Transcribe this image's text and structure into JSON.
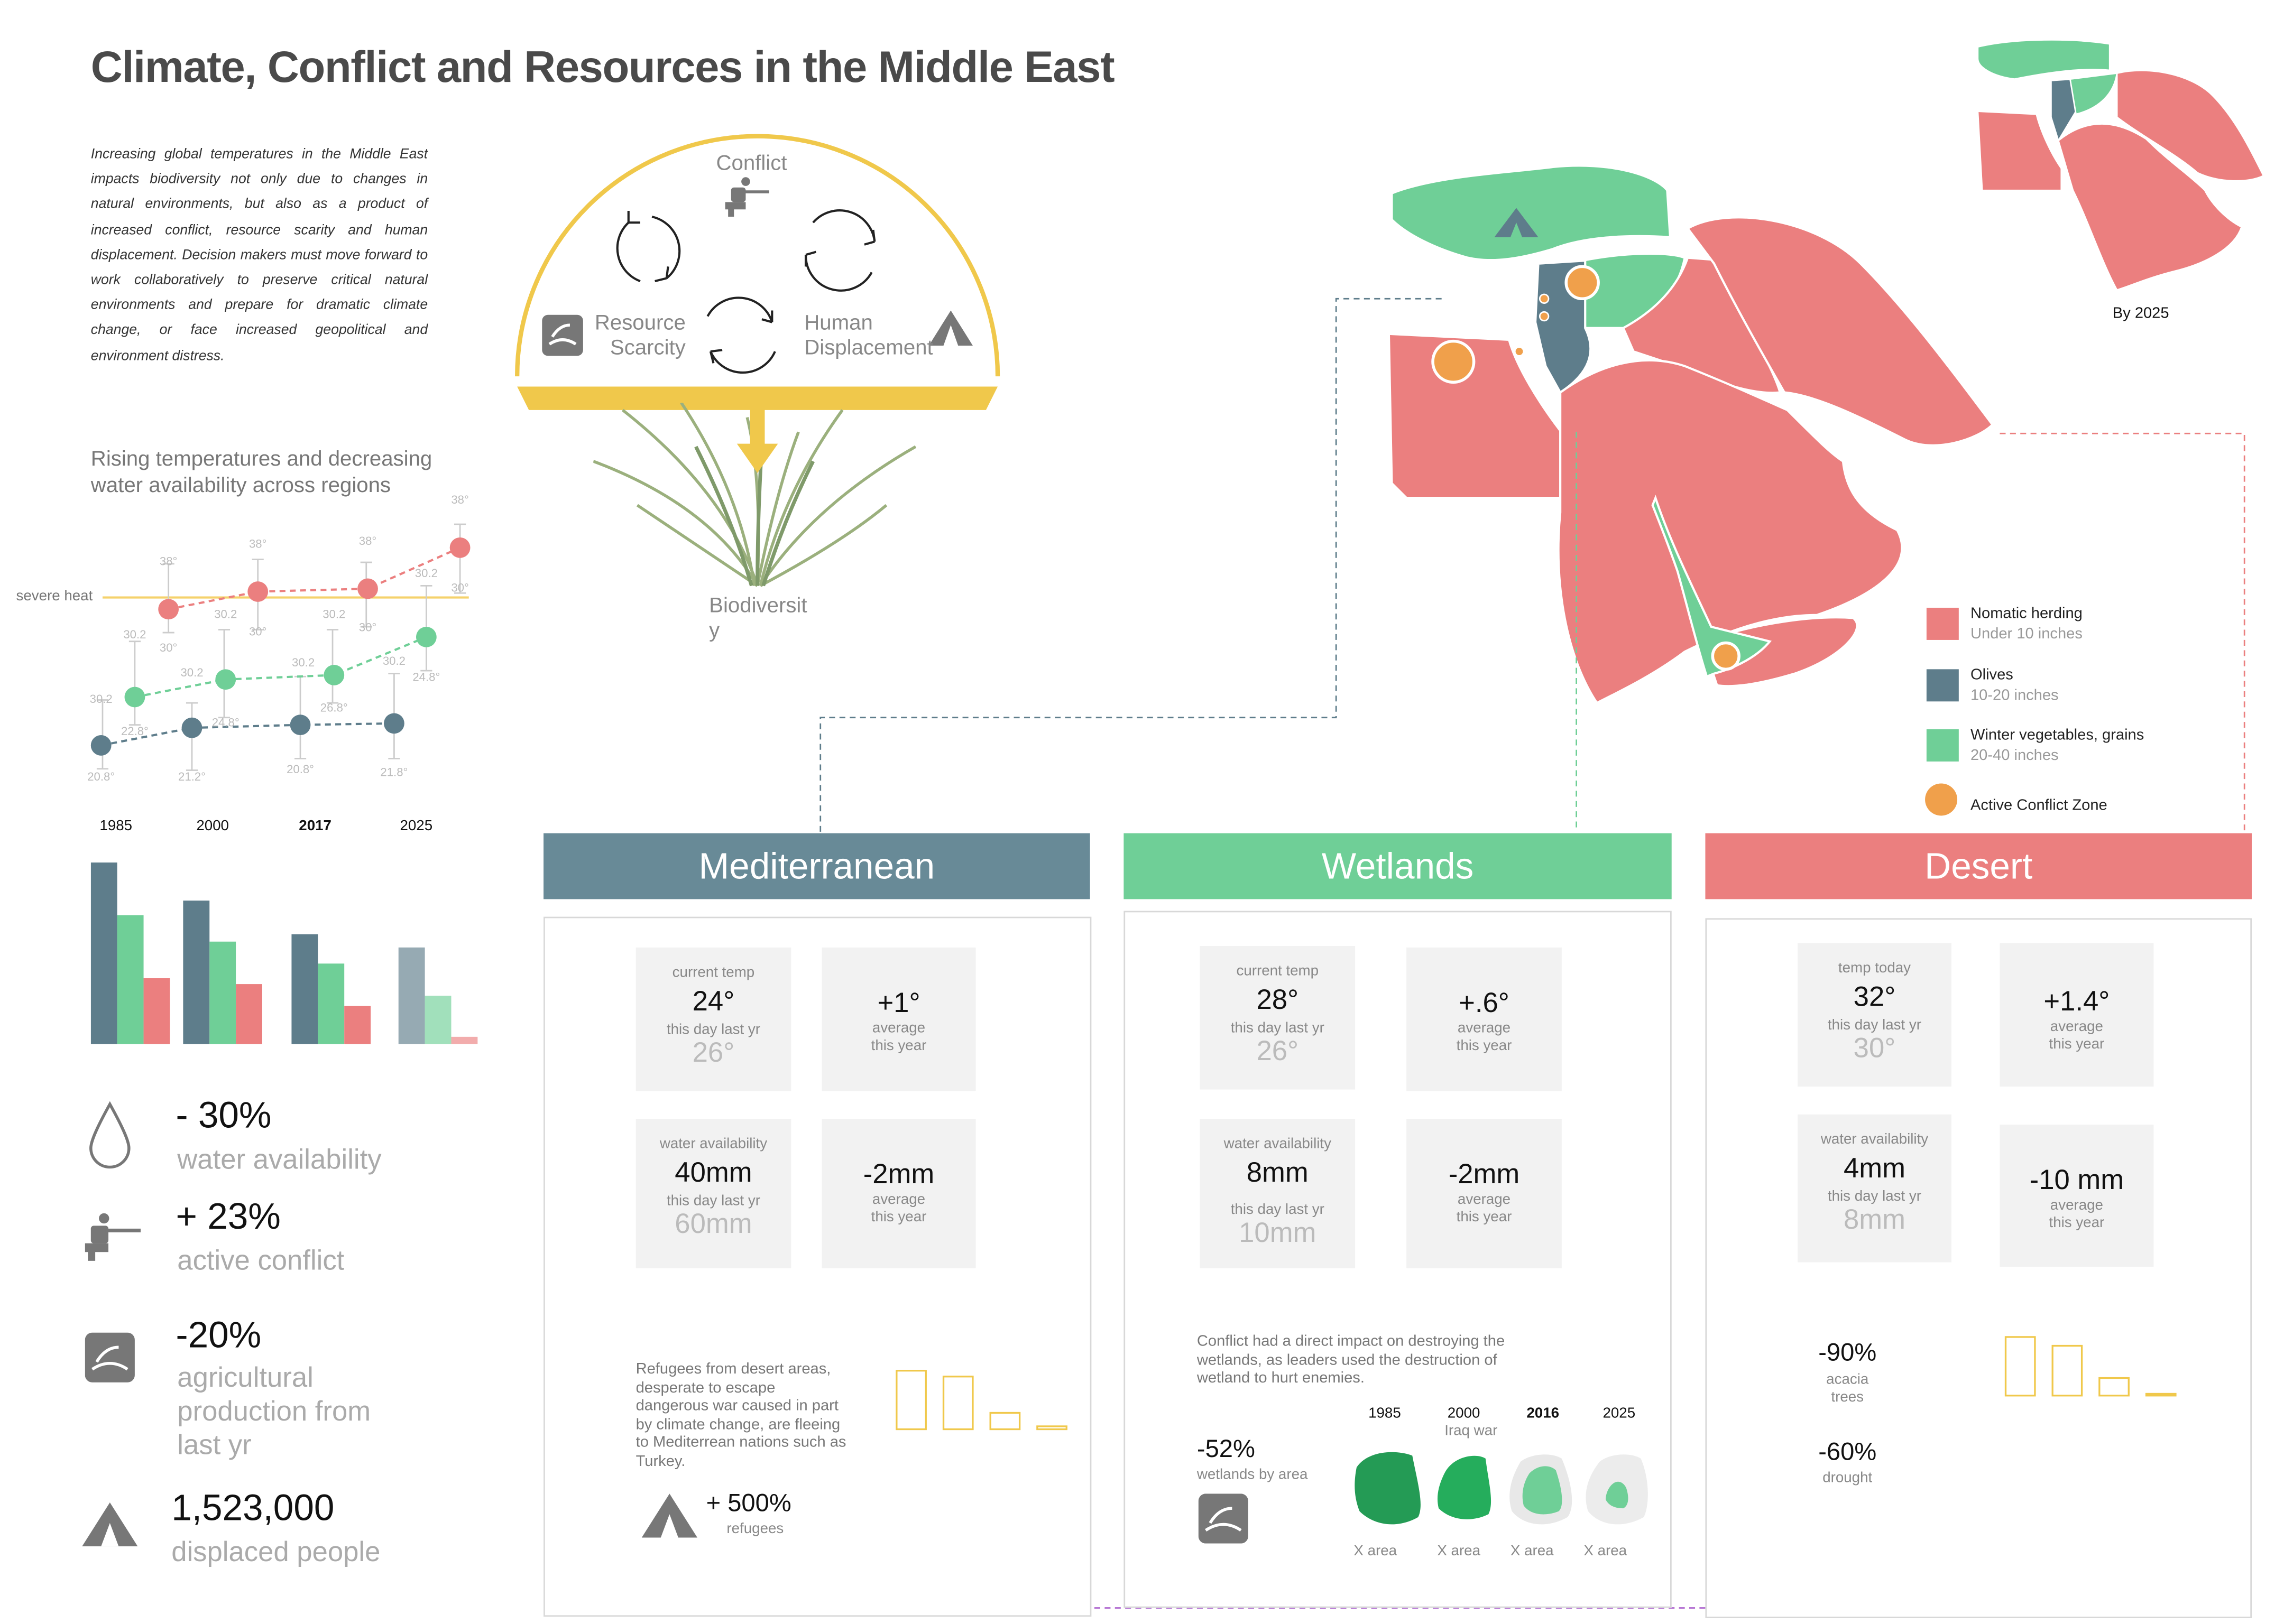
{
  "title": "Climate, Conflict and Resources in the Middle East",
  "intro": "Increasing global temperatures in the Middle East impacts biodiversity not only due to changes in natural environments, but also as a product of increased conflict, resource scarity and human displacement. Decision makers must move forward to work collaboratively to preserve critical natural environments and prepare for dramatic climate change, or face increased geopolitical and environment distress.",
  "cycle": {
    "conflict": "Conflict",
    "resource_line1": "Resource",
    "resource_line2": "Scarcity",
    "human_line1": "Human",
    "human_line2": "Displacement",
    "biodiversity_line1": "Biodiversit",
    "biodiversity_line2": "y"
  },
  "temp_chart": {
    "title_line1": "Rising temperatures and decreasing",
    "title_line2": "water availability across regions",
    "threshold_label": "severe heat",
    "years": [
      "1985",
      "2000",
      "2017",
      "2025"
    ],
    "colors": {
      "desert": "#eb7f7f",
      "wetlands": "#6fcf97",
      "mediterranean": "#5e7d8b",
      "threshold": "#f5d26b"
    },
    "series": [
      {
        "color": "desert",
        "values": [
          38,
          38.6,
          38.6,
          39.4
        ],
        "high": [
          "38°",
          "38°",
          "38°",
          "38°"
        ],
        "low": [
          "30°",
          "30°",
          "30°",
          "30°"
        ],
        "mid": [
          "",
          "",
          "30.2",
          "30.2"
        ]
      },
      {
        "color": "wetlands",
        "values": [
          31.8,
          32.4,
          32.4,
          33.5
        ],
        "high": [
          "30.2",
          "30.2",
          "30.2",
          "30.2"
        ],
        "low": [
          "22.8°",
          "24.8°",
          "26.8°",
          "24.8°"
        ]
      },
      {
        "color": "mediterranean",
        "values": [
          30,
          30.7,
          30.7,
          30.8
        ],
        "high": [
          "30.2",
          "",
          "",
          "30.2"
        ],
        "low": [
          "20.8°",
          "21.2°",
          "20.8°",
          "21.8°"
        ]
      }
    ],
    "tick_labels": [
      "38°",
      "38°",
      "38°",
      "38°",
      "30.2",
      "30°",
      "30.2",
      "30°",
      "30.2",
      "30°",
      "30.2",
      "30°",
      "30.2",
      "30.2",
      "30.2",
      "30.2",
      "22.8°",
      "24.8°",
      "26.8°",
      "24.8°",
      "30.2",
      "30.2",
      "20.8°",
      "21.2°",
      "20.8°",
      "21.8°"
    ]
  },
  "chart_data": {
    "type": "bar",
    "categories": [
      "1985",
      "2000",
      "2017",
      "2025"
    ],
    "series": [
      {
        "values": [
          124,
          98,
          75,
          66
        ]
      },
      {
        "values": [
          88,
          70,
          55,
          33
        ]
      },
      {
        "values": [
          45,
          41,
          26,
          5
        ]
      }
    ]
  },
  "stats": [
    {
      "value": "- 30%",
      "label": "water availability",
      "icon": "water-drop-icon"
    },
    {
      "value": "+ 23%",
      "label": "active conflict",
      "icon": "soldier-icon"
    },
    {
      "value": "-20%",
      "label_line1": "agricultural",
      "label_line2": "production from",
      "label_line3": "last yr",
      "icon": "farm-icon"
    },
    {
      "value": "1,523,000",
      "label": "displaced people",
      "icon": "tent-icon"
    }
  ],
  "map": {
    "by_label": "By 2025",
    "legend": [
      {
        "title": "Nomatic herding",
        "sub": "Under 10 inches",
        "color": "#eb7f7f"
      },
      {
        "title": "Olives",
        "sub": "10-20 inches",
        "color": "#5e7d8b"
      },
      {
        "title": "Winter vegetables, grains",
        "sub": "20-40 inches",
        "color": "#6fcf97"
      },
      {
        "title": "Active Conflict Zone",
        "sub": "",
        "color": "#f0a04b"
      }
    ]
  },
  "panels": {
    "mediterranean": {
      "title": "Mediterranean",
      "color": "#688a97",
      "temp": {
        "label": "current temp",
        "value": "24°",
        "sub": "this day last yr",
        "prev": "26°"
      },
      "temp_change": {
        "value": "+1°",
        "line1": "average",
        "line2": "this year"
      },
      "water": {
        "label": "water availability",
        "value": "40mm",
        "sub": "this day last yr",
        "prev": "60mm"
      },
      "water_change": {
        "value": "-2mm",
        "line1": "average",
        "line2": "this year"
      },
      "note": "Refugees from desert areas, desperate to escape dangerous war caused in part by climate change, are fleeing to Mediterrean nations such as Turkey.",
      "refugees_value": "+ 500%",
      "refugees_label": "refugees",
      "bars": [
        1.0,
        0.9,
        0.28,
        0.05
      ]
    },
    "wetlands": {
      "title": "Wetlands",
      "color": "#6fcf97",
      "temp": {
        "label": "current temp",
        "value": "28°",
        "sub": "this day last yr",
        "prev": "26°"
      },
      "temp_change": {
        "value": "+.6°",
        "line1": "average",
        "line2": "this year"
      },
      "water": {
        "label": "water availability",
        "value": "8mm",
        "sub": "this day last yr",
        "prev": "10mm"
      },
      "water_change": {
        "value": "-2mm",
        "line1": "average",
        "line2": "this year"
      },
      "note": "Conflict had a direct impact on destroying the wetlands, as leaders used the destruction of wetland to hurt enemies.",
      "loss_value": "-52%",
      "loss_label": "wetlands by area",
      "years": [
        "1985",
        "2000",
        "2016",
        "2025"
      ],
      "iraq_war": "Iraq war",
      "area_label": "X area"
    },
    "desert": {
      "title": "Desert",
      "color": "#eb7f7f",
      "temp": {
        "label": "temp today",
        "value": "32°",
        "sub": "this day last yr",
        "prev": "30°"
      },
      "temp_change": {
        "value": "+1.4°",
        "line1": "average",
        "line2": "this year"
      },
      "water": {
        "label": "water availability",
        "value": "4mm",
        "sub": "this day last yr",
        "prev": "8mm"
      },
      "water_change": {
        "value": "-10 mm",
        "line1": "average",
        "line2": "this year"
      },
      "acacia_value": "-90%",
      "acacia_line1": "acacia",
      "acacia_line2": "trees",
      "drought_value": "-60%",
      "drought_label": "drought",
      "bars": [
        1.0,
        0.85,
        0.3,
        0.03
      ]
    }
  }
}
